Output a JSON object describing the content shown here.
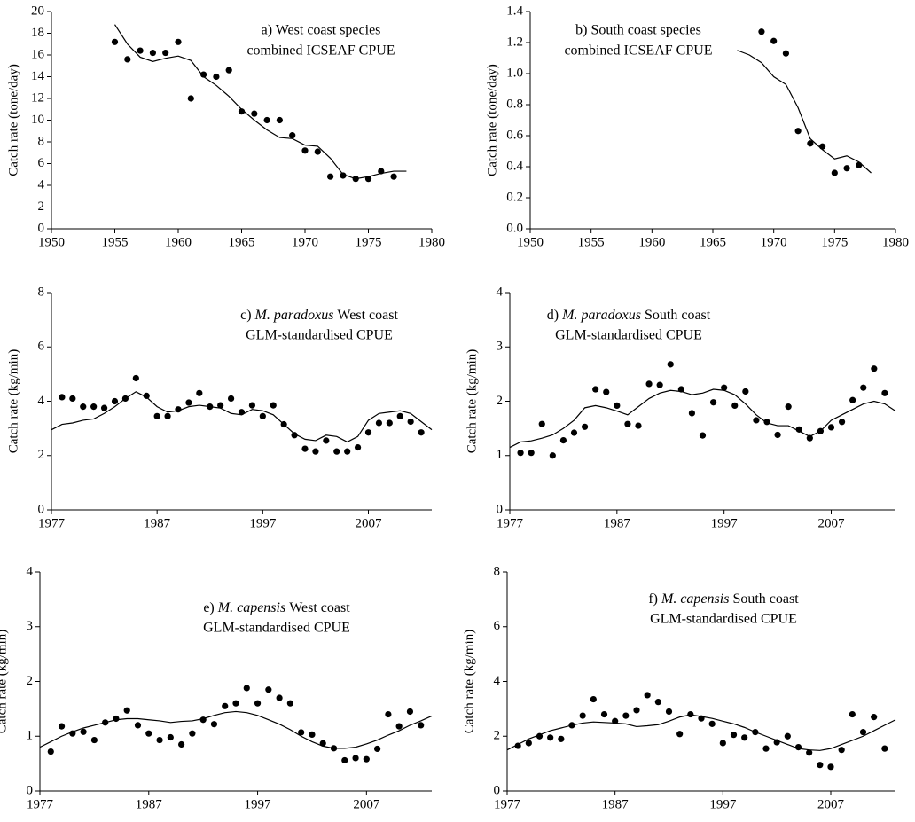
{
  "chart_data": [
    {
      "type": "scatter",
      "title": "a) West coast species",
      "subtitle": "combined ICSEAF CPUE",
      "y_label": "Catch rate (tone/day)",
      "color": "#000000",
      "xlim": [
        1950,
        1980
      ],
      "xticks": [
        1950,
        1955,
        1960,
        1965,
        1970,
        1975,
        1980
      ],
      "ylim": [
        0,
        20
      ],
      "yticks": [
        0,
        2,
        4,
        6,
        8,
        10,
        12,
        14,
        16,
        18,
        20
      ],
      "points": {
        "x": [
          1955,
          1956,
          1957,
          1958,
          1959,
          1960,
          1961,
          1962,
          1963,
          1964,
          1965,
          1966,
          1967,
          1968,
          1969,
          1970,
          1971,
          1972,
          1973,
          1974,
          1975,
          1976,
          1977
        ],
        "values": [
          17.2,
          15.6,
          16.4,
          16.2,
          16.2,
          17.2,
          12.0,
          14.2,
          14.0,
          14.6,
          10.8,
          10.6,
          10.0,
          10.0,
          8.6,
          7.2,
          7.1,
          4.8,
          4.9,
          4.6,
          4.6,
          5.3,
          4.8
        ]
      },
      "line": {
        "x": [
          1955,
          1956,
          1957,
          1958,
          1959,
          1960,
          1961,
          1962,
          1963,
          1964,
          1965,
          1966,
          1967,
          1968,
          1969,
          1970,
          1971,
          1972,
          1973,
          1974,
          1975,
          1976,
          1977,
          1978
        ],
        "values": [
          18.8,
          17.0,
          15.8,
          15.4,
          15.7,
          15.9,
          15.5,
          14.0,
          13.2,
          12.2,
          11.0,
          10.0,
          9.1,
          8.4,
          8.3,
          7.7,
          7.6,
          6.5,
          5.0,
          4.6,
          4.8,
          5.1,
          5.3,
          5.3
        ]
      }
    },
    {
      "type": "scatter",
      "title": "b) South coast species",
      "subtitle": "combined ICSEAF CPUE",
      "y_label": "Catch rate (tone/day)",
      "color": "#000000",
      "xlim": [
        1950,
        1980
      ],
      "xticks": [
        1950,
        1955,
        1960,
        1965,
        1970,
        1975,
        1980
      ],
      "ylim": [
        0,
        1.4
      ],
      "yticks": [
        {
          "value": 0,
          "label": "0.0"
        },
        0.2,
        0.4,
        0.6,
        0.8,
        {
          "value": 1,
          "label": "1.0"
        },
        1.2,
        1.4
      ],
      "points": {
        "x": [
          1969,
          1970,
          1971,
          1972,
          1973,
          1974,
          1975,
          1976,
          1977
        ],
        "values": [
          1.27,
          1.21,
          1.13,
          0.63,
          0.55,
          0.53,
          0.36,
          0.39,
          0.41
        ]
      },
      "line": {
        "x": [
          1967,
          1968,
          1969,
          1970,
          1971,
          1972,
          1973,
          1974,
          1975,
          1976,
          1977,
          1978
        ],
        "values": [
          1.15,
          1.12,
          1.07,
          0.98,
          0.93,
          0.78,
          0.58,
          0.51,
          0.45,
          0.47,
          0.43,
          0.36
        ]
      }
    },
    {
      "type": "scatter",
      "title_prefix": "c)",
      "title_species": "M. paradoxus",
      "title_rest": "West coast",
      "subtitle": "GLM-standardised CPUE",
      "y_label": "Catch rate (kg/min)",
      "color": "#000000",
      "xlim": [
        1977,
        2013
      ],
      "xticks": [
        1977,
        1987,
        1997,
        2007
      ],
      "ylim": [
        0,
        8
      ],
      "yticks": [
        0,
        2,
        4,
        6,
        8
      ],
      "points": {
        "x": [
          1978,
          1979,
          1980,
          1981,
          1982,
          1983,
          1984,
          1985,
          1986,
          1987,
          1988,
          1989,
          1990,
          1991,
          1992,
          1993,
          1994,
          1995,
          1996,
          1997,
          1998,
          1999,
          2000,
          2001,
          2002,
          2003,
          2004,
          2005,
          2006,
          2007,
          2008,
          2009,
          2010,
          2011,
          2012
        ],
        "values": [
          4.15,
          4.1,
          3.8,
          3.8,
          3.75,
          4.0,
          4.1,
          4.85,
          4.2,
          3.45,
          3.45,
          3.7,
          3.95,
          4.3,
          3.8,
          3.85,
          4.1,
          3.6,
          3.85,
          3.45,
          3.85,
          3.15,
          2.75,
          2.25,
          2.15,
          2.55,
          2.15,
          2.15,
          2.3,
          2.85,
          3.2,
          3.2,
          3.45,
          3.25,
          2.85
        ]
      },
      "line": {
        "x": [
          1977,
          1978,
          1979,
          1980,
          1981,
          1982,
          1983,
          1984,
          1985,
          1986,
          1987,
          1988,
          1989,
          1990,
          1991,
          1992,
          1993,
          1994,
          1995,
          1996,
          1997,
          1998,
          1999,
          2000,
          2001,
          2002,
          2003,
          2004,
          2005,
          2006,
          2007,
          2008,
          2009,
          2010,
          2011,
          2012,
          2013
        ],
        "values": [
          2.95,
          3.15,
          3.2,
          3.3,
          3.35,
          3.55,
          3.8,
          4.1,
          4.35,
          4.15,
          3.8,
          3.6,
          3.65,
          3.8,
          3.85,
          3.8,
          3.75,
          3.55,
          3.5,
          3.7,
          3.65,
          3.5,
          3.15,
          2.8,
          2.6,
          2.55,
          2.75,
          2.7,
          2.5,
          2.7,
          3.3,
          3.55,
          3.6,
          3.65,
          3.55,
          3.25,
          2.95
        ]
      }
    },
    {
      "type": "scatter",
      "title_prefix": "d)",
      "title_species": "M. paradoxus",
      "title_rest": "South coast",
      "subtitle": "GLM-standardised CPUE",
      "y_label": "Catch rate (kg/min)",
      "color": "#000000",
      "xlim": [
        1977,
        2013
      ],
      "xticks": [
        1977,
        1987,
        1997,
        2007
      ],
      "ylim": [
        0,
        4
      ],
      "yticks": [
        0,
        1,
        2,
        3,
        4
      ],
      "points": {
        "x": [
          1978,
          1979,
          1980,
          1981,
          1982,
          1983,
          1984,
          1985,
          1986,
          1987,
          1988,
          1989,
          1990,
          1991,
          1992,
          1993,
          1994,
          1995,
          1996,
          1997,
          1998,
          1999,
          2000,
          2001,
          2002,
          2003,
          2004,
          2005,
          2006,
          2007,
          2008,
          2009,
          2010,
          2011,
          2012
        ],
        "values": [
          1.05,
          1.05,
          1.58,
          1.0,
          1.28,
          1.42,
          1.53,
          2.22,
          2.17,
          1.92,
          1.58,
          1.55,
          2.32,
          2.3,
          2.68,
          2.22,
          1.78,
          1.37,
          1.98,
          2.25,
          1.92,
          2.18,
          1.65,
          1.62,
          1.38,
          1.9,
          1.48,
          1.32,
          1.45,
          1.52,
          1.62,
          2.02,
          2.25,
          2.6,
          2.15
        ]
      },
      "line": {
        "x": [
          1977,
          1978,
          1979,
          1980,
          1981,
          1982,
          1983,
          1984,
          1985,
          1986,
          1987,
          1988,
          1989,
          1990,
          1991,
          1992,
          1993,
          1994,
          1995,
          1996,
          1997,
          1998,
          1999,
          2000,
          2001,
          2002,
          2003,
          2004,
          2005,
          2006,
          2007,
          2008,
          2009,
          2010,
          2011,
          2012,
          2013
        ],
        "values": [
          1.15,
          1.25,
          1.27,
          1.32,
          1.38,
          1.5,
          1.65,
          1.88,
          1.92,
          1.88,
          1.82,
          1.75,
          1.9,
          2.05,
          2.15,
          2.2,
          2.18,
          2.12,
          2.15,
          2.22,
          2.2,
          2.12,
          1.95,
          1.75,
          1.6,
          1.55,
          1.55,
          1.45,
          1.35,
          1.45,
          1.65,
          1.75,
          1.85,
          1.95,
          2.0,
          1.95,
          1.82
        ]
      }
    },
    {
      "type": "scatter",
      "title_prefix": "e)",
      "title_species": "M. capensis",
      "title_rest": "West coast",
      "subtitle": "GLM-standardised CPUE",
      "y_label": "Catch rate (kg/min)",
      "color": "#000000",
      "xlim": [
        1977,
        2013
      ],
      "xticks": [
        1977,
        1987,
        1997,
        2007
      ],
      "ylim": [
        0,
        4
      ],
      "yticks": [
        0,
        1,
        2,
        3,
        4
      ],
      "points": {
        "x": [
          1978,
          1979,
          1980,
          1981,
          1982,
          1983,
          1984,
          1985,
          1986,
          1987,
          1988,
          1989,
          1990,
          1991,
          1992,
          1993,
          1994,
          1995,
          1996,
          1997,
          1998,
          1999,
          2000,
          2001,
          2002,
          2003,
          2004,
          2005,
          2006,
          2007,
          2008,
          2009,
          2010,
          2011,
          2012
        ],
        "values": [
          0.72,
          1.18,
          1.05,
          1.08,
          0.93,
          1.25,
          1.32,
          1.47,
          1.2,
          1.05,
          0.93,
          0.98,
          0.85,
          1.05,
          1.3,
          1.22,
          1.55,
          1.6,
          1.88,
          1.6,
          1.85,
          1.7,
          1.6,
          1.07,
          1.03,
          0.87,
          0.78,
          0.56,
          0.6,
          0.58,
          0.77,
          1.4,
          1.18,
          1.45,
          1.2
        ]
      },
      "line": {
        "x": [
          1977,
          1978,
          1979,
          1980,
          1981,
          1982,
          1983,
          1984,
          1985,
          1986,
          1987,
          1988,
          1989,
          1990,
          1991,
          1992,
          1993,
          1994,
          1995,
          1996,
          1997,
          1998,
          1999,
          2000,
          2001,
          2002,
          2003,
          2004,
          2005,
          2006,
          2007,
          2008,
          2009,
          2010,
          2011,
          2012,
          2013
        ],
        "values": [
          0.8,
          0.9,
          1.0,
          1.08,
          1.15,
          1.2,
          1.25,
          1.3,
          1.32,
          1.32,
          1.3,
          1.28,
          1.25,
          1.27,
          1.28,
          1.32,
          1.38,
          1.43,
          1.45,
          1.43,
          1.38,
          1.3,
          1.22,
          1.12,
          1.0,
          0.9,
          0.82,
          0.78,
          0.78,
          0.8,
          0.86,
          0.93,
          1.02,
          1.1,
          1.2,
          1.28,
          1.37
        ]
      }
    },
    {
      "type": "scatter",
      "title_prefix": "f)",
      "title_species": "M. capensis",
      "title_rest": "South coast",
      "subtitle": "GLM-standardised CPUE",
      "y_label": "Catch rate (kg/min)",
      "color": "#000000",
      "xlim": [
        1977,
        2013
      ],
      "xticks": [
        1977,
        1987,
        1997,
        2007
      ],
      "ylim": [
        0,
        8
      ],
      "yticks": [
        0,
        2,
        4,
        6,
        8
      ],
      "points": {
        "x": [
          1978,
          1979,
          1980,
          1981,
          1982,
          1983,
          1984,
          1985,
          1986,
          1987,
          1988,
          1989,
          1990,
          1991,
          1992,
          1993,
          1994,
          1995,
          1996,
          1997,
          1998,
          1999,
          2000,
          2001,
          2002,
          2003,
          2004,
          2005,
          2006,
          2007,
          2008,
          2009,
          2010,
          2011,
          2012
        ],
        "values": [
          1.65,
          1.75,
          2.0,
          1.95,
          1.9,
          2.4,
          2.75,
          3.35,
          2.8,
          2.55,
          2.75,
          2.95,
          3.5,
          3.25,
          2.9,
          2.08,
          2.8,
          2.65,
          2.45,
          1.75,
          2.05,
          1.95,
          2.15,
          1.55,
          1.78,
          2.0,
          1.6,
          1.4,
          0.95,
          0.88,
          1.5,
          2.8,
          2.15,
          2.7,
          1.55
        ]
      },
      "line": {
        "x": [
          1977,
          1978,
          1979,
          1980,
          1981,
          1982,
          1983,
          1984,
          1985,
          1986,
          1987,
          1988,
          1989,
          1990,
          1991,
          1992,
          1993,
          1994,
          1995,
          1996,
          1997,
          1998,
          1999,
          2000,
          2001,
          2002,
          2003,
          2004,
          2005,
          2006,
          2007,
          2008,
          2009,
          2010,
          2011,
          2012,
          2013
        ],
        "values": [
          1.5,
          1.7,
          1.9,
          2.05,
          2.2,
          2.3,
          2.4,
          2.48,
          2.52,
          2.5,
          2.48,
          2.45,
          2.35,
          2.38,
          2.42,
          2.55,
          2.7,
          2.78,
          2.72,
          2.65,
          2.55,
          2.45,
          2.32,
          2.15,
          2.0,
          1.85,
          1.7,
          1.55,
          1.5,
          1.48,
          1.55,
          1.7,
          1.85,
          2.0,
          2.2,
          2.4,
          2.6
        ]
      }
    }
  ]
}
